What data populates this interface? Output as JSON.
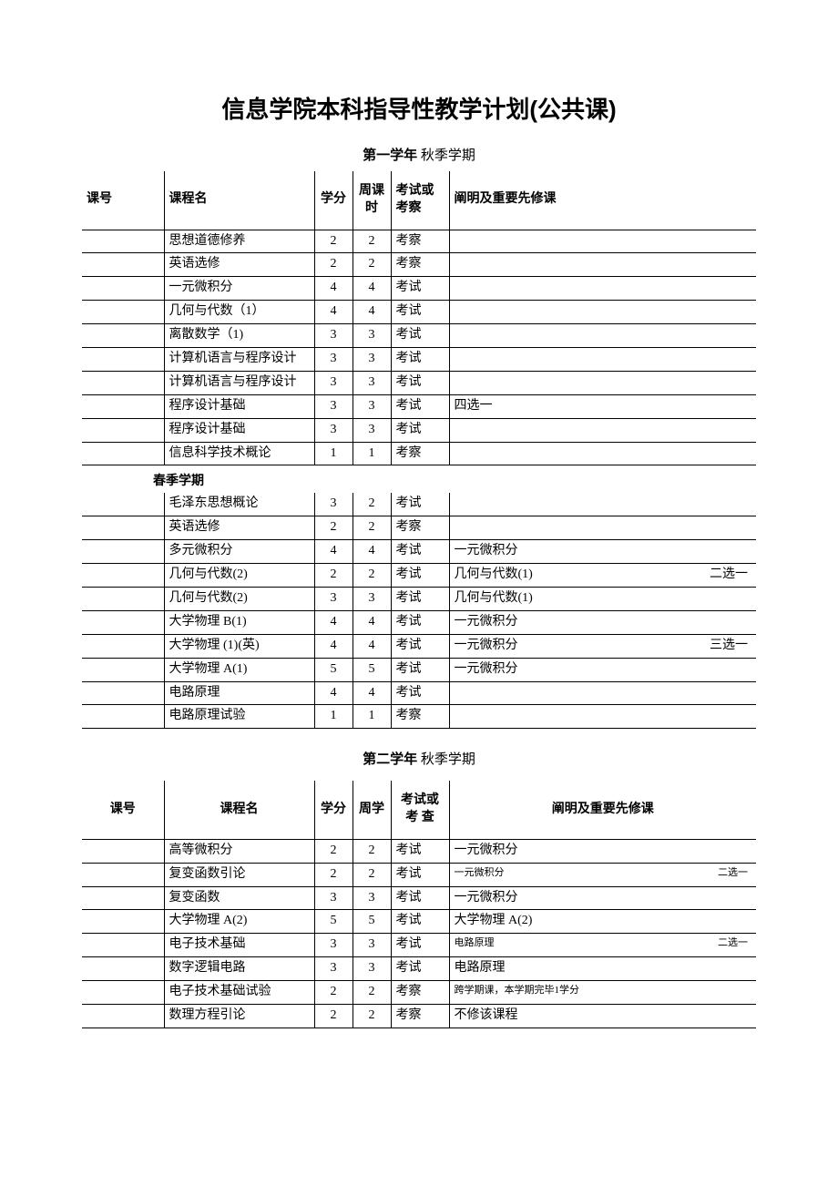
{
  "title": "信息学院本科指导性教学计划(公共课)",
  "year1_header_bold": "第一学年",
  "year1_header_rest": " 秋季学期",
  "columns_a": [
    "课号",
    "课程名",
    "学分",
    "周课时",
    "考试或考察",
    "阐明及重要先修课"
  ],
  "spring_label": "春季学期",
  "year2_header_bold": "第二学年",
  "year2_header_rest": "    秋季学期",
  "columns_b": [
    "课号",
    "课程名",
    "学分",
    "周学",
    "考试或考 查",
    "阐明及重要先修课"
  ],
  "fall1": [
    {
      "name": "思想道德修养",
      "credit": "2",
      "hours": "2",
      "exam": "考察",
      "note": "",
      "right": ""
    },
    {
      "name": "英语选修",
      "credit": "2",
      "hours": "2",
      "exam": "考察",
      "note": "",
      "right": ""
    },
    {
      "name": "一元微积分",
      "credit": "4",
      "hours": "4",
      "exam": "考试",
      "note": "",
      "right": ""
    },
    {
      "name": "几何与代数（1）",
      "credit": "4",
      "hours": "4",
      "exam": "考试",
      "note": "",
      "right": ""
    },
    {
      "name": "离散数学（1)",
      "credit": "3",
      "hours": "3",
      "exam": "考试",
      "note": "",
      "right": ""
    },
    {
      "name": "计算机语言与程序设计",
      "credit": "3",
      "hours": "3",
      "exam": "考试",
      "note": "",
      "right": ""
    },
    {
      "name": "计算机语言与程序设计",
      "credit": "3",
      "hours": "3",
      "exam": "考试",
      "note": "",
      "right": ""
    },
    {
      "name": "程序设计基础",
      "credit": "3",
      "hours": "3",
      "exam": "考试",
      "note": "四选一",
      "right": ""
    },
    {
      "name": "程序设计基础",
      "credit": "3",
      "hours": "3",
      "exam": "考试",
      "note": "",
      "right": ""
    },
    {
      "name": "信息科学技术概论",
      "credit": "1",
      "hours": "1",
      "exam": "考察",
      "note": "",
      "right": ""
    }
  ],
  "spring1": [
    {
      "name": "毛泽东思想概论",
      "credit": "3",
      "hours": "2",
      "exam": "考试",
      "note": "",
      "right": ""
    },
    {
      "name": "英语选修",
      "credit": "2",
      "hours": "2",
      "exam": "考察",
      "note": "",
      "right": ""
    },
    {
      "name": "多元微积分",
      "credit": "4",
      "hours": "4",
      "exam": "考试",
      "note": "一元微积分",
      "right": ""
    },
    {
      "name": "几何与代数(2)",
      "credit": "2",
      "hours": "2",
      "exam": "考试",
      "note": "几何与代数(1)",
      "right": "二选一"
    },
    {
      "name": "几何与代数(2)",
      "credit": "3",
      "hours": "3",
      "exam": "考试",
      "note": "几何与代数(1)",
      "right": ""
    },
    {
      "name": "大学物理 B(1)",
      "credit": "4",
      "hours": "4",
      "exam": "考试",
      "note": "一元微积分",
      "right": ""
    },
    {
      "name": "大学物理 (1)(英)",
      "credit": "4",
      "hours": "4",
      "exam": "考试",
      "note": "一元微积分",
      "right": "三选一"
    },
    {
      "name": "大学物理 A(1)",
      "credit": "5",
      "hours": "5",
      "exam": "考试",
      "note": "一元微积分",
      "right": ""
    },
    {
      "name": "电路原理",
      "credit": "4",
      "hours": "4",
      "exam": "考试",
      "note": "",
      "right": ""
    },
    {
      "name": "电路原理试验",
      "credit": "1",
      "hours": "1",
      "exam": "考察",
      "note": "",
      "right": ""
    }
  ],
  "fall2": [
    {
      "name": "高等微积分",
      "credit": "2",
      "hours": "2",
      "exam": "考试",
      "note": "一元微积分",
      "right": "",
      "small": false
    },
    {
      "name": "复变函数引论",
      "credit": "2",
      "hours": "2",
      "exam": "考试",
      "note": "一元微积分",
      "right": "二选一",
      "small": true
    },
    {
      "name": "复变函数",
      "credit": "3",
      "hours": "3",
      "exam": "考试",
      "note": "一元微积分",
      "right": "",
      "small": false
    },
    {
      "name": "大学物理 A(2)",
      "credit": "5",
      "hours": "5",
      "exam": "考试",
      "note": "大学物理 A(2)",
      "right": "",
      "small": false
    },
    {
      "name": "电子技术基础",
      "credit": "3",
      "hours": "3",
      "exam": "考试",
      "note": "电路原理",
      "right": "二选一",
      "small": true
    },
    {
      "name": "数字逻辑电路",
      "credit": "3",
      "hours": "3",
      "exam": "考试",
      "note": "电路原理",
      "right": "",
      "small": false
    },
    {
      "name": "电子技术基础试验",
      "credit": "2",
      "hours": "2",
      "exam": "考察",
      "note": "跨学期课，本学期完毕1学分",
      "right": "",
      "small": true
    },
    {
      "name": "数理方程引论",
      "credit": "2",
      "hours": "2",
      "exam": "考察",
      "note": "不修该课程",
      "right": "",
      "small": false
    }
  ],
  "style": {
    "background": "#ffffff",
    "text_color": "#000000",
    "border_color": "#000000",
    "title_fontsize": 26,
    "body_fontsize": 14,
    "small_fontsize": 11,
    "col_widths": {
      "num": 90,
      "name": 165,
      "credit": 42,
      "hours": 42,
      "exam": 64
    }
  }
}
